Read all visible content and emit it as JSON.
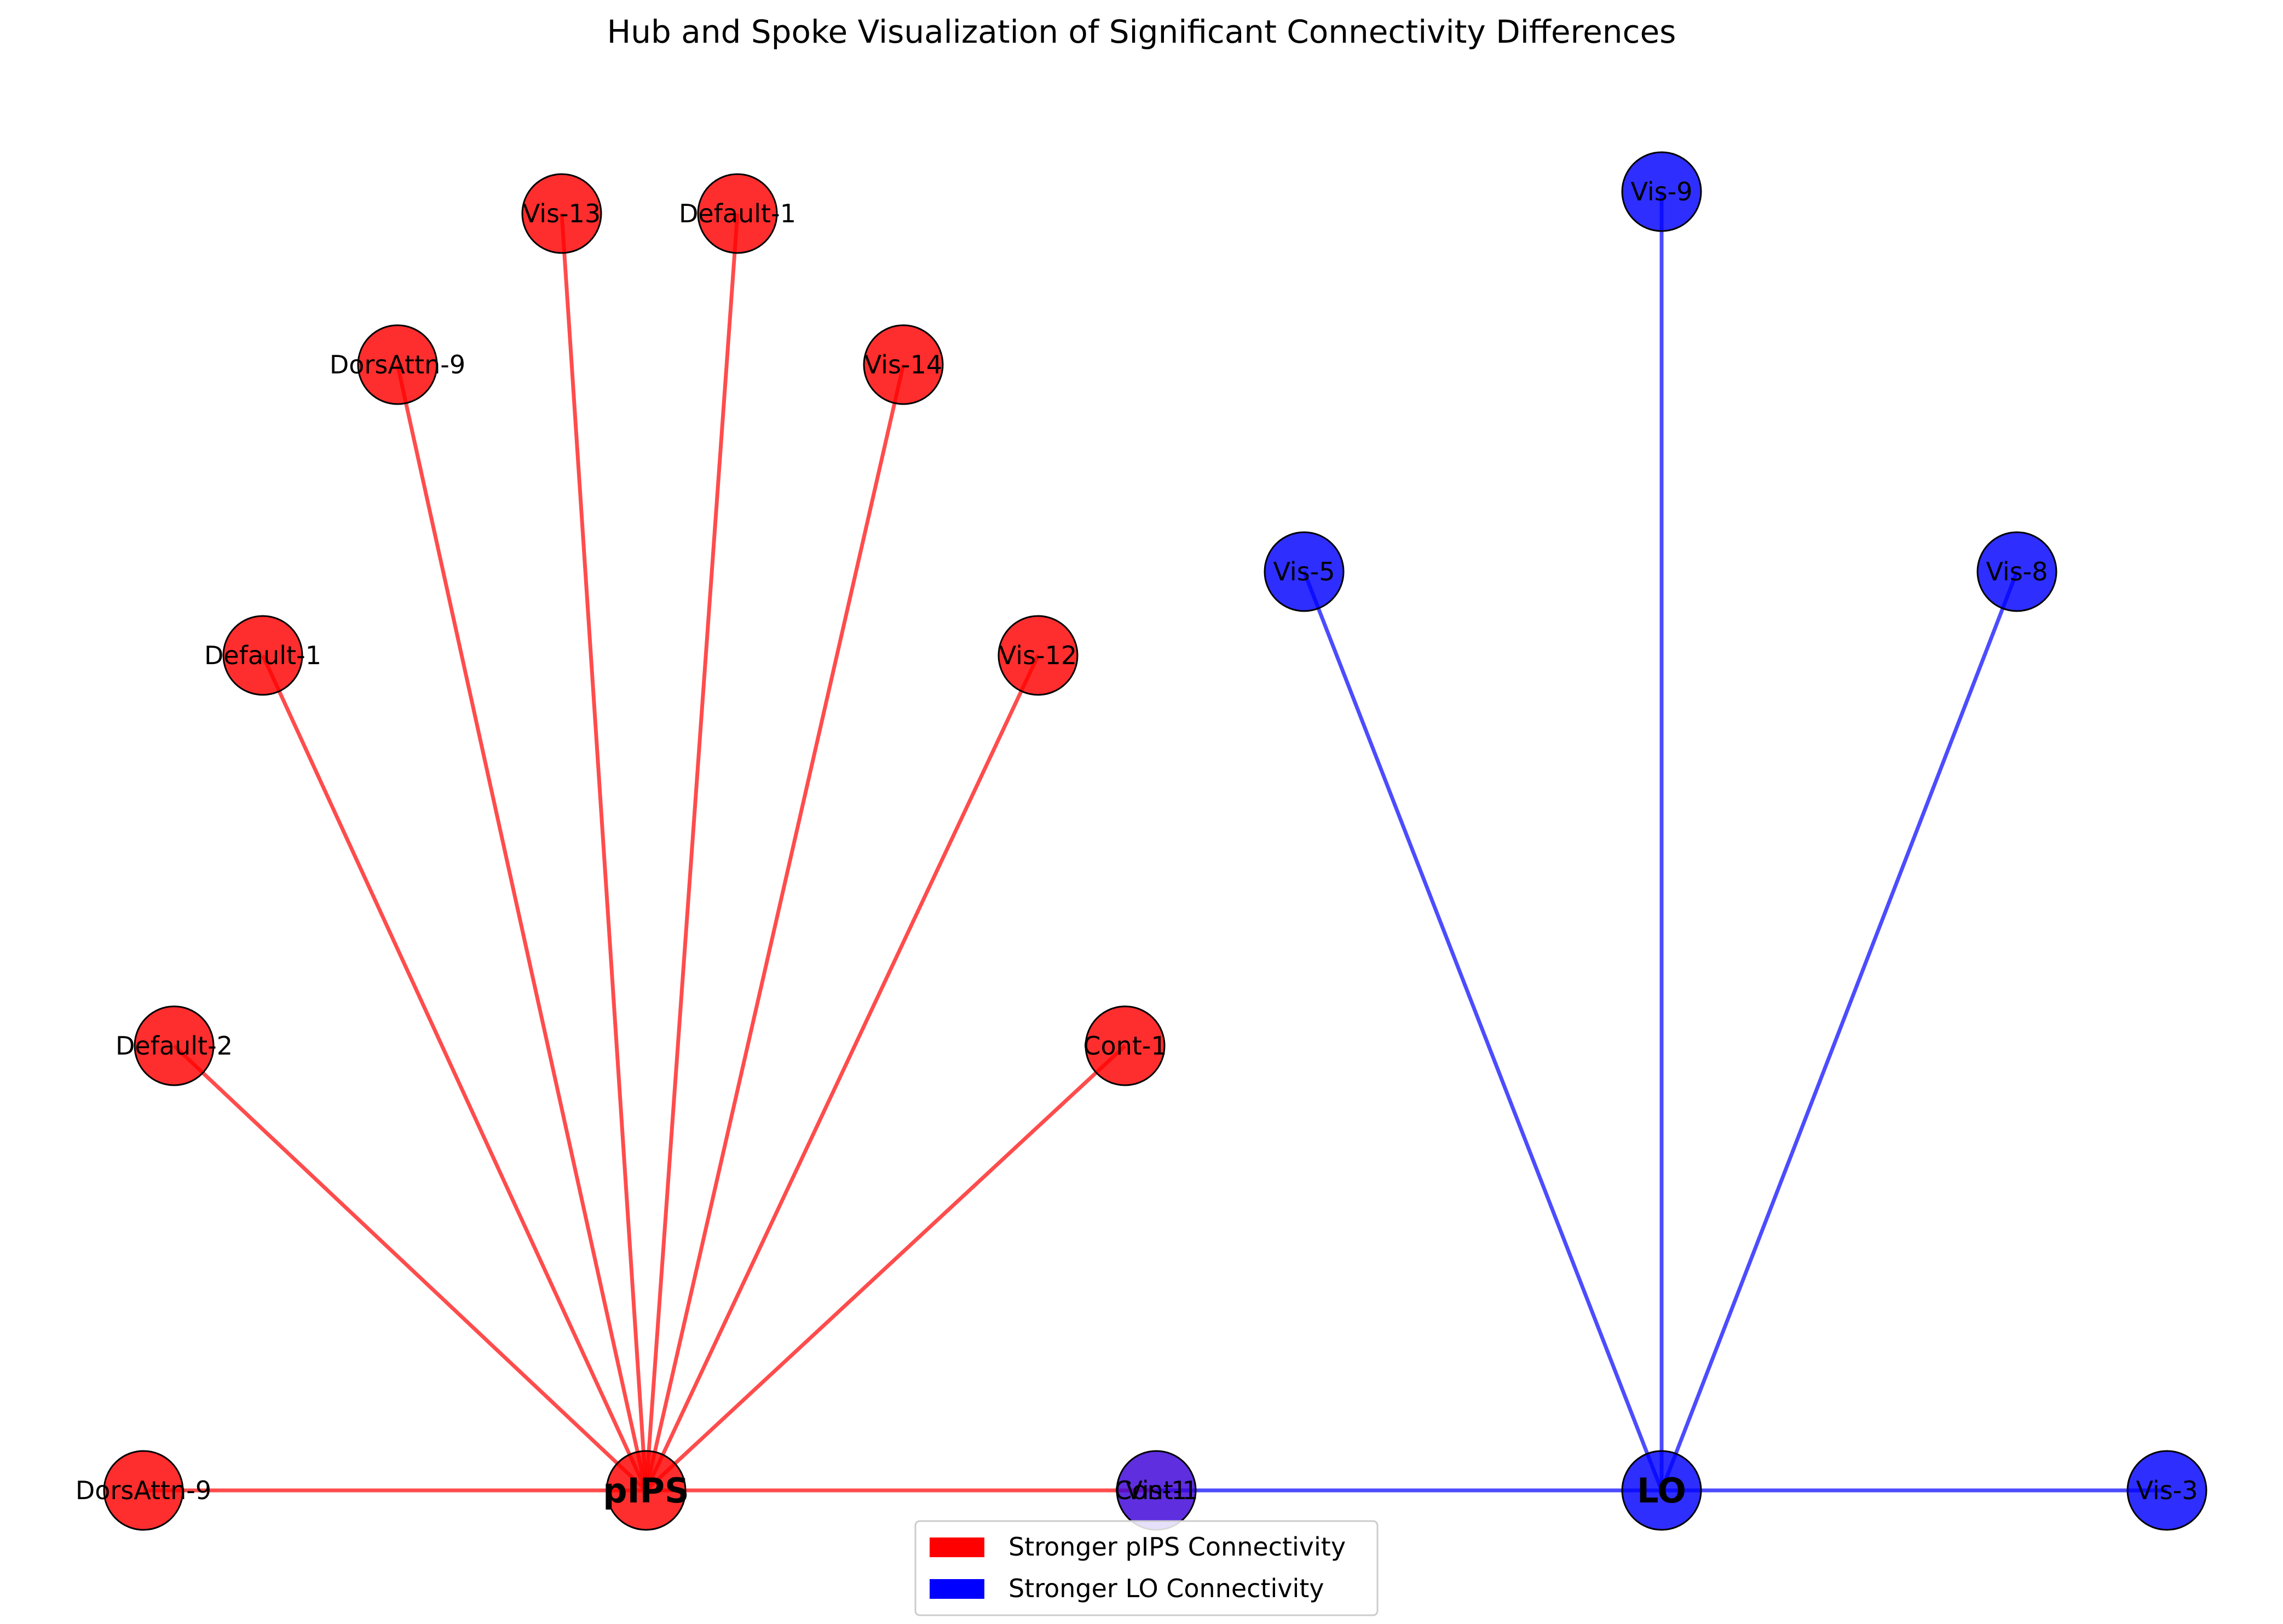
{
  "title": "Hub and Spoke Visualization of Significant Connectivity Differences",
  "colors": {
    "pips": "#ff0000",
    "lo": "#0000ff",
    "overlap_node": "#3a00d8",
    "node_edge": "#000000"
  },
  "hubs": [
    {
      "id": "pIPS",
      "label": "pIPS",
      "group": "pips"
    },
    {
      "id": "LO",
      "label": "LO",
      "group": "lo"
    }
  ],
  "spokes": [
    {
      "id": "pips-dorsattn9-a",
      "label": "DorsAttn-9",
      "hub": "pIPS",
      "group": "pips"
    },
    {
      "id": "pips-default2",
      "label": "Default-2",
      "hub": "pIPS",
      "group": "pips"
    },
    {
      "id": "pips-default1-a",
      "label": "Default-1",
      "hub": "pIPS",
      "group": "pips"
    },
    {
      "id": "pips-dorsattn9-b",
      "label": "DorsAttn-9",
      "hub": "pIPS",
      "group": "pips"
    },
    {
      "id": "pips-vis13",
      "label": "Vis-13",
      "hub": "pIPS",
      "group": "pips"
    },
    {
      "id": "pips-default1-b",
      "label": "Default-1",
      "hub": "pIPS",
      "group": "pips"
    },
    {
      "id": "pips-vis14",
      "label": "Vis-14",
      "hub": "pIPS",
      "group": "pips"
    },
    {
      "id": "pips-vis12",
      "label": "Vis-12",
      "hub": "pIPS",
      "group": "pips"
    },
    {
      "id": "pips-cont1",
      "label": "Cont-1",
      "hub": "pIPS",
      "group": "pips"
    },
    {
      "id": "pips-cont1-center",
      "label": "Cont-1",
      "hub": "pIPS",
      "group": "pips"
    },
    {
      "id": "lo-vis5",
      "label": "Vis-5",
      "hub": "LO",
      "group": "lo"
    },
    {
      "id": "lo-vis9",
      "label": "Vis-9",
      "hub": "LO",
      "group": "lo"
    },
    {
      "id": "lo-vis8",
      "label": "Vis-8",
      "hub": "LO",
      "group": "lo"
    },
    {
      "id": "lo-vis3",
      "label": "Vis-3",
      "hub": "LO",
      "group": "lo"
    },
    {
      "id": "lo-vis1-center",
      "label": "Vis-1",
      "hub": "LO",
      "group": "lo"
    }
  ],
  "legend": {
    "location": "lower center",
    "items": [
      {
        "label": "Stronger pIPS Connectivity",
        "color": "#ff0000"
      },
      {
        "label": "Stronger LO Connectivity",
        "color": "#0000ff"
      }
    ]
  }
}
